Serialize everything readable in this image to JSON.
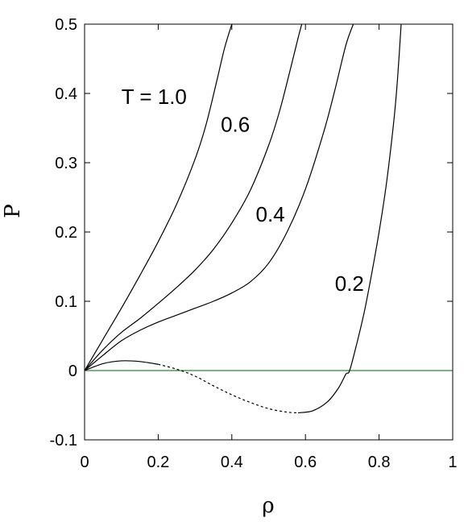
{
  "chart_data": {
    "type": "line",
    "title": "",
    "xlabel": "ρ",
    "ylabel": "P",
    "xlim": [
      0,
      1
    ],
    "ylim": [
      -0.1,
      0.5
    ],
    "xticks": [
      0,
      0.2,
      0.4,
      0.6,
      0.8,
      1
    ],
    "xtick_labels": [
      "0",
      "0.2",
      "0.4",
      "0.6",
      "0.8",
      "1"
    ],
    "yticks": [
      -0.1,
      0,
      0.1,
      0.2,
      0.3,
      0.4,
      0.5
    ],
    "ytick_labels": [
      "-0.1",
      "0",
      "0.1",
      "0.2",
      "0.3",
      "0.4",
      "0.5"
    ],
    "grid": false,
    "reference_line": {
      "y": 0,
      "color": "#006400"
    },
    "series": [
      {
        "name": "T = 1.0",
        "style": "solid",
        "points": [
          [
            0,
            0
          ],
          [
            0.02,
            0.018
          ],
          [
            0.05,
            0.045
          ],
          [
            0.1,
            0.09
          ],
          [
            0.15,
            0.137
          ],
          [
            0.2,
            0.186
          ],
          [
            0.25,
            0.24
          ],
          [
            0.3,
            0.305
          ],
          [
            0.33,
            0.355
          ],
          [
            0.36,
            0.42
          ],
          [
            0.38,
            0.465
          ],
          [
            0.4,
            0.5
          ]
        ]
      },
      {
        "name": "0.6",
        "style": "solid",
        "points": [
          [
            0,
            0
          ],
          [
            0.05,
            0.03
          ],
          [
            0.1,
            0.055
          ],
          [
            0.15,
            0.075
          ],
          [
            0.2,
            0.097
          ],
          [
            0.25,
            0.12
          ],
          [
            0.3,
            0.145
          ],
          [
            0.35,
            0.175
          ],
          [
            0.4,
            0.213
          ],
          [
            0.45,
            0.26
          ],
          [
            0.5,
            0.325
          ],
          [
            0.53,
            0.375
          ],
          [
            0.56,
            0.437
          ],
          [
            0.58,
            0.48
          ],
          [
            0.59,
            0.5
          ]
        ]
      },
      {
        "name": "0.4",
        "style": "solid",
        "points": [
          [
            0,
            0
          ],
          [
            0.05,
            0.022
          ],
          [
            0.1,
            0.043
          ],
          [
            0.15,
            0.058
          ],
          [
            0.2,
            0.07
          ],
          [
            0.25,
            0.08
          ],
          [
            0.3,
            0.09
          ],
          [
            0.35,
            0.1
          ],
          [
            0.4,
            0.112
          ],
          [
            0.45,
            0.128
          ],
          [
            0.5,
            0.155
          ],
          [
            0.55,
            0.2
          ],
          [
            0.6,
            0.262
          ],
          [
            0.65,
            0.345
          ],
          [
            0.68,
            0.405
          ],
          [
            0.71,
            0.47
          ],
          [
            0.73,
            0.5
          ]
        ]
      },
      {
        "name": "0.2",
        "style": "solid",
        "points": [
          [
            0,
            0
          ],
          [
            0.05,
            0.01
          ],
          [
            0.1,
            0.014
          ],
          [
            0.15,
            0.013
          ],
          [
            0.2,
            0.009
          ]
        ]
      },
      {
        "name": "",
        "style": "dashed",
        "points": [
          [
            0.2,
            0.009
          ],
          [
            0.25,
            0.002
          ],
          [
            0.3,
            -0.008
          ],
          [
            0.35,
            -0.022
          ],
          [
            0.4,
            -0.035
          ],
          [
            0.45,
            -0.046
          ],
          [
            0.5,
            -0.055
          ],
          [
            0.55,
            -0.06
          ],
          [
            0.58,
            -0.061
          ]
        ]
      },
      {
        "name": "",
        "style": "solid",
        "points": [
          [
            0.58,
            -0.061
          ],
          [
            0.62,
            -0.058
          ],
          [
            0.66,
            -0.045
          ],
          [
            0.69,
            -0.025
          ],
          [
            0.71,
            -0.005
          ],
          [
            0.72,
            0
          ],
          [
            0.74,
            0.04
          ],
          [
            0.76,
            0.085
          ],
          [
            0.78,
            0.14
          ],
          [
            0.8,
            0.2
          ],
          [
            0.82,
            0.27
          ],
          [
            0.84,
            0.36
          ],
          [
            0.85,
            0.42
          ],
          [
            0.86,
            0.5
          ]
        ]
      }
    ],
    "annotations": [
      {
        "text": "T = 1.0",
        "x": 0.1,
        "y": 0.385
      },
      {
        "text": "0.6",
        "x": 0.37,
        "y": 0.345
      },
      {
        "text": "0.4",
        "x": 0.465,
        "y": 0.215
      },
      {
        "text": "0.2",
        "x": 0.68,
        "y": 0.115
      }
    ]
  }
}
